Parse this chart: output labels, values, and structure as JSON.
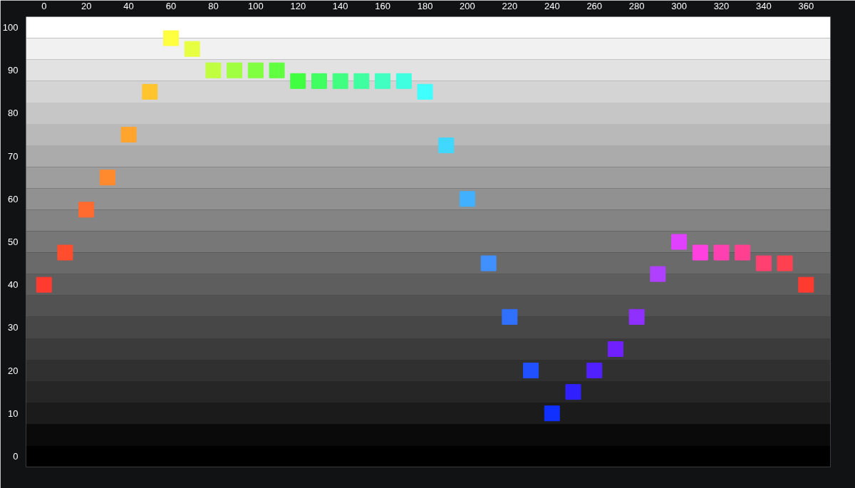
{
  "chart_data": {
    "type": "scatter",
    "marker": "square",
    "grid": false,
    "legend": false,
    "x": [
      0,
      10,
      20,
      30,
      40,
      50,
      60,
      70,
      80,
      90,
      100,
      110,
      120,
      130,
      140,
      150,
      160,
      170,
      180,
      190,
      200,
      210,
      220,
      230,
      240,
      250,
      260,
      270,
      280,
      290,
      300,
      310,
      320,
      330,
      340,
      350,
      360
    ],
    "values": [
      40,
      47.5,
      57.5,
      65,
      75,
      85,
      97.5,
      95,
      90,
      90,
      90,
      90,
      87.5,
      87.5,
      87.5,
      87.5,
      87.5,
      87.5,
      85,
      72.5,
      60,
      45,
      32.5,
      20,
      10,
      15,
      20,
      25,
      32.5,
      42.5,
      50,
      47.5,
      47.5,
      47.5,
      45,
      45,
      40
    ],
    "colors": [
      "#ff3b30",
      "#ff4d2e",
      "#ff6a2e",
      "#ff8a2e",
      "#ffa52e",
      "#ffc42e",
      "#ffff40",
      "#e6ff40",
      "#c0ff40",
      "#a0ff40",
      "#80ff40",
      "#60ff40",
      "#40ff40",
      "#40ff60",
      "#40ff80",
      "#40ffa0",
      "#40ffc0",
      "#40ffe0",
      "#40ffff",
      "#40d8ff",
      "#40b0ff",
      "#4090ff",
      "#3070ff",
      "#2050ff",
      "#1030ff",
      "#3020ff",
      "#5020ff",
      "#7020ff",
      "#9030ff",
      "#b040ff",
      "#e040ff",
      "#ff40e0",
      "#ff40b0",
      "#ff4090",
      "#ff4070",
      "#ff4050",
      "#ff3b30"
    ],
    "xlim": [
      -8.5,
      371.5
    ],
    "ylim": [
      -2.5,
      102.5
    ],
    "xticks": [
      0,
      20,
      40,
      60,
      80,
      100,
      120,
      140,
      160,
      180,
      200,
      220,
      240,
      260,
      280,
      300,
      320,
      340,
      360
    ],
    "yticks": [
      0,
      10,
      20,
      30,
      40,
      50,
      60,
      70,
      80,
      90,
      100
    ],
    "bands": [
      {
        "axis": "y",
        "from": -2.5,
        "to": 2.5,
        "color": "#000000"
      },
      {
        "axis": "y",
        "from": 2.5,
        "to": 7.5,
        "color": "#0a0a0a"
      },
      {
        "axis": "y",
        "from": 7.5,
        "to": 12.5,
        "color": "#1b1b1b"
      },
      {
        "axis": "y",
        "from": 12.5,
        "to": 17.5,
        "color": "#262626"
      },
      {
        "axis": "y",
        "from": 17.5,
        "to": 22.5,
        "color": "#303030"
      },
      {
        "axis": "y",
        "from": 22.5,
        "to": 27.5,
        "color": "#3b3b3b"
      },
      {
        "axis": "y",
        "from": 27.5,
        "to": 32.5,
        "color": "#474747"
      },
      {
        "axis": "y",
        "from": 32.5,
        "to": 37.5,
        "color": "#525252"
      },
      {
        "axis": "y",
        "from": 37.5,
        "to": 42.5,
        "color": "#5e5e5e"
      },
      {
        "axis": "y",
        "from": 42.5,
        "to": 47.5,
        "color": "#6a6a6a"
      },
      {
        "axis": "y",
        "from": 47.5,
        "to": 52.5,
        "color": "#777777"
      },
      {
        "axis": "y",
        "from": 52.5,
        "to": 57.5,
        "color": "#848484"
      },
      {
        "axis": "y",
        "from": 57.5,
        "to": 62.5,
        "color": "#919191"
      },
      {
        "axis": "y",
        "from": 62.5,
        "to": 67.5,
        "color": "#9e9e9e"
      },
      {
        "axis": "y",
        "from": 67.5,
        "to": 72.5,
        "color": "#ababab"
      },
      {
        "axis": "y",
        "from": 72.5,
        "to": 77.5,
        "color": "#b9b9b9"
      },
      {
        "axis": "y",
        "from": 77.5,
        "to": 82.5,
        "color": "#c6c6c6"
      },
      {
        "axis": "y",
        "from": 82.5,
        "to": 87.5,
        "color": "#d4d4d4"
      },
      {
        "axis": "y",
        "from": 87.5,
        "to": 92.5,
        "color": "#e2e2e2"
      },
      {
        "axis": "y",
        "from": 92.5,
        "to": 97.5,
        "color": "#f1f1f1"
      },
      {
        "axis": "y",
        "from": 97.5,
        "to": 102.5,
        "color": "#ffffff"
      }
    ]
  }
}
